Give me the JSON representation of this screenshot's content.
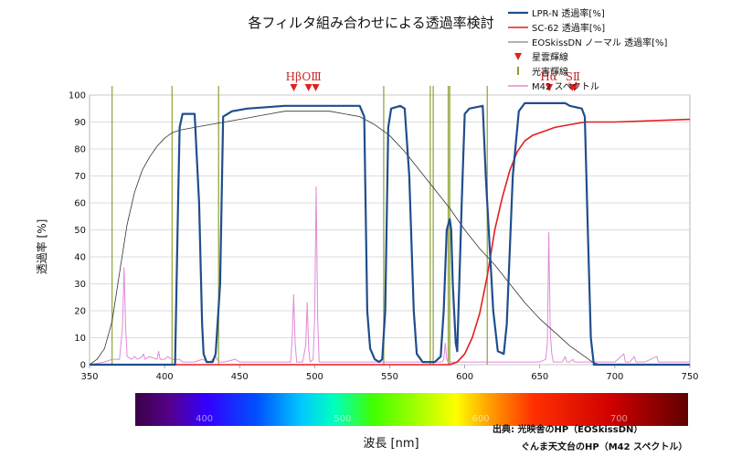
{
  "chart_data": {
    "type": "line",
    "title": "各フィルタ組み合わせによる透過率検討",
    "xlabel": "波長 [nm]",
    "ylabel": "透過率 [%]",
    "xlim": [
      350,
      750
    ],
    "ylim": [
      0,
      100
    ],
    "x_ticks": [
      350,
      400,
      450,
      500,
      550,
      600,
      650,
      700,
      750
    ],
    "y_ticks": [
      0,
      10,
      20,
      30,
      40,
      50,
      60,
      70,
      80,
      90,
      100
    ],
    "grid": true,
    "legend_position": "top-right",
    "series": [
      {
        "name": "LPR-N 透過率[%]",
        "color": "#1f4e8c",
        "points": [
          [
            350,
            0
          ],
          [
            407,
            0
          ],
          [
            409,
            60
          ],
          [
            410,
            88
          ],
          [
            412,
            93
          ],
          [
            420,
            93
          ],
          [
            423,
            60
          ],
          [
            425,
            15
          ],
          [
            426,
            4
          ],
          [
            428,
            1
          ],
          [
            432,
            1
          ],
          [
            434,
            4
          ],
          [
            437,
            30
          ],
          [
            439,
            92
          ],
          [
            445,
            94
          ],
          [
            455,
            95
          ],
          [
            480,
            96
          ],
          [
            500,
            96
          ],
          [
            530,
            96
          ],
          [
            533,
            92
          ],
          [
            535,
            20
          ],
          [
            537,
            6
          ],
          [
            540,
            2
          ],
          [
            543,
            1
          ],
          [
            545,
            2
          ],
          [
            547,
            20
          ],
          [
            549,
            88
          ],
          [
            551,
            95
          ],
          [
            557,
            96
          ],
          [
            560,
            95
          ],
          [
            563,
            70
          ],
          [
            566,
            20
          ],
          [
            568,
            4
          ],
          [
            572,
            1
          ],
          [
            580,
            1
          ],
          [
            584,
            3
          ],
          [
            586,
            20
          ],
          [
            588,
            50
          ],
          [
            590,
            54
          ],
          [
            591,
            50
          ],
          [
            592,
            30
          ],
          [
            594,
            8
          ],
          [
            595,
            5
          ],
          [
            598,
            60
          ],
          [
            600,
            93
          ],
          [
            603,
            95
          ],
          [
            612,
            96
          ],
          [
            614,
            70
          ],
          [
            617,
            40
          ],
          [
            619,
            20
          ],
          [
            622,
            5
          ],
          [
            626,
            4
          ],
          [
            628,
            15
          ],
          [
            632,
            70
          ],
          [
            636,
            94
          ],
          [
            640,
            97
          ],
          [
            655,
            97
          ],
          [
            667,
            97
          ],
          [
            670,
            96
          ],
          [
            678,
            95
          ],
          [
            680,
            92
          ],
          [
            682,
            50
          ],
          [
            684,
            10
          ],
          [
            686,
            0
          ],
          [
            750,
            0
          ]
        ]
      },
      {
        "name": "SC-62 透過率[%]",
        "color": "#e02020",
        "points": [
          [
            350,
            0
          ],
          [
            500,
            0
          ],
          [
            590,
            0
          ],
          [
            595,
            1
          ],
          [
            600,
            4
          ],
          [
            605,
            10
          ],
          [
            610,
            19
          ],
          [
            615,
            33
          ],
          [
            620,
            50
          ],
          [
            625,
            62
          ],
          [
            630,
            72
          ],
          [
            635,
            79
          ],
          [
            640,
            83
          ],
          [
            645,
            85
          ],
          [
            650,
            86
          ],
          [
            655,
            87
          ],
          [
            660,
            88
          ],
          [
            670,
            89
          ],
          [
            680,
            90
          ],
          [
            700,
            90
          ],
          [
            750,
            91
          ]
        ]
      },
      {
        "name": "EOSkissDN ノーマル 透過率[%]",
        "color": "#333333",
        "points": [
          [
            350,
            0
          ],
          [
            355,
            2
          ],
          [
            360,
            6
          ],
          [
            365,
            16
          ],
          [
            370,
            34
          ],
          [
            375,
            52
          ],
          [
            380,
            64
          ],
          [
            385,
            72
          ],
          [
            390,
            77
          ],
          [
            395,
            81
          ],
          [
            400,
            84
          ],
          [
            405,
            86
          ],
          [
            410,
            87
          ],
          [
            420,
            88
          ],
          [
            430,
            89
          ],
          [
            440,
            90
          ],
          [
            450,
            91
          ],
          [
            460,
            92
          ],
          [
            470,
            93
          ],
          [
            480,
            94
          ],
          [
            490,
            94
          ],
          [
            500,
            94
          ],
          [
            510,
            94
          ],
          [
            520,
            93
          ],
          [
            530,
            92
          ],
          [
            540,
            89
          ],
          [
            550,
            85
          ],
          [
            560,
            79
          ],
          [
            570,
            72
          ],
          [
            580,
            65
          ],
          [
            590,
            58
          ],
          [
            600,
            50
          ],
          [
            610,
            43
          ],
          [
            620,
            37
          ],
          [
            630,
            30
          ],
          [
            640,
            23
          ],
          [
            650,
            17
          ],
          [
            660,
            12
          ],
          [
            670,
            7
          ],
          [
            680,
            3
          ],
          [
            685,
            1
          ],
          [
            690,
            0
          ]
        ]
      },
      {
        "name": "M42 スペクトル",
        "color": "#e08ad8",
        "points": [
          [
            350,
            0
          ],
          [
            360,
            1
          ],
          [
            365,
            2
          ],
          [
            370,
            2
          ],
          [
            372,
            14
          ],
          [
            373,
            36
          ],
          [
            374,
            15
          ],
          [
            375,
            3
          ],
          [
            378,
            2
          ],
          [
            380,
            3
          ],
          [
            382,
            2
          ],
          [
            385,
            3
          ],
          [
            386,
            4
          ],
          [
            387,
            2
          ],
          [
            390,
            3
          ],
          [
            395,
            2
          ],
          [
            396,
            5
          ],
          [
            397,
            2
          ],
          [
            400,
            2
          ],
          [
            402,
            3
          ],
          [
            405,
            2
          ],
          [
            410,
            2
          ],
          [
            412,
            1
          ],
          [
            420,
            1
          ],
          [
            425,
            2
          ],
          [
            430,
            1
          ],
          [
            434,
            3
          ],
          [
            436,
            1
          ],
          [
            440,
            1
          ],
          [
            447,
            2
          ],
          [
            450,
            1
          ],
          [
            460,
            1
          ],
          [
            470,
            1
          ],
          [
            480,
            1
          ],
          [
            484,
            1
          ],
          [
            485,
            9
          ],
          [
            486,
            26
          ],
          [
            487,
            8
          ],
          [
            488,
            1
          ],
          [
            492,
            1
          ],
          [
            494,
            7
          ],
          [
            495,
            23
          ],
          [
            496,
            6
          ],
          [
            497,
            1
          ],
          [
            499,
            2
          ],
          [
            500,
            18
          ],
          [
            501,
            66
          ],
          [
            502,
            16
          ],
          [
            503,
            1
          ],
          [
            510,
            1
          ],
          [
            520,
            1
          ],
          [
            530,
            1
          ],
          [
            540,
            1
          ],
          [
            550,
            1
          ],
          [
            560,
            1
          ],
          [
            570,
            1
          ],
          [
            580,
            1
          ],
          [
            585,
            1
          ],
          [
            586,
            2
          ],
          [
            587,
            8
          ],
          [
            588,
            2
          ],
          [
            589,
            1
          ],
          [
            595,
            1
          ],
          [
            600,
            1
          ],
          [
            605,
            1
          ],
          [
            610,
            1
          ],
          [
            620,
            1
          ],
          [
            630,
            1
          ],
          [
            640,
            1
          ],
          [
            650,
            1
          ],
          [
            654,
            2
          ],
          [
            655,
            8
          ],
          [
            656,
            49
          ],
          [
            657,
            12
          ],
          [
            658,
            4
          ],
          [
            659,
            1
          ],
          [
            665,
            1
          ],
          [
            667,
            3
          ],
          [
            668,
            1
          ],
          [
            670,
            1
          ],
          [
            672,
            2
          ],
          [
            673,
            1
          ],
          [
            680,
            1
          ],
          [
            690,
            1
          ],
          [
            700,
            1
          ],
          [
            706,
            4
          ],
          [
            707,
            1
          ],
          [
            710,
            1
          ],
          [
            713,
            3
          ],
          [
            714,
            1
          ],
          [
            720,
            1
          ],
          [
            728,
            3
          ],
          [
            729,
            1
          ],
          [
            740,
            1
          ],
          [
            750,
            1
          ]
        ]
      }
    ],
    "markers": {
      "nebula_lines": {
        "name": "星雲輝線",
        "color": "#e02020",
        "symbol": "triangle-down",
        "lines": [
          {
            "label": "Hβ",
            "x": 486.1
          },
          {
            "label": "OⅢ",
            "x": 495.9
          },
          {
            "label": "OⅢ",
            "x": 500.7
          },
          {
            "label": "Hα",
            "x": 656.3
          },
          {
            "label": "SⅡ",
            "x": 671.6
          },
          {
            "label": "SⅡ",
            "x": 673.1
          }
        ],
        "group_labels": [
          {
            "text": "Hβ",
            "x": 486
          },
          {
            "text": "OⅢ",
            "x": 498
          },
          {
            "text": "Hα",
            "x": 656
          },
          {
            "text": "SⅡ",
            "x": 672
          }
        ]
      },
      "light_pollution_lines": {
        "name": "光害輝線",
        "color": "#8aa030",
        "x": [
          365,
          405,
          436,
          546,
          577,
          579,
          589,
          590,
          615
        ]
      }
    },
    "spectrum_bar": {
      "range": [
        350,
        750
      ],
      "tick_labels": [
        {
          "text": "400",
          "x": 400
        },
        {
          "text": "500",
          "x": 500
        },
        {
          "text": "600",
          "x": 600
        },
        {
          "text": "700",
          "x": 700
        }
      ]
    },
    "credits": [
      "出典: 光映舎のHP（EOSkissDN）",
      "ぐんま天文台のHP（M42 スペクトル）"
    ]
  }
}
